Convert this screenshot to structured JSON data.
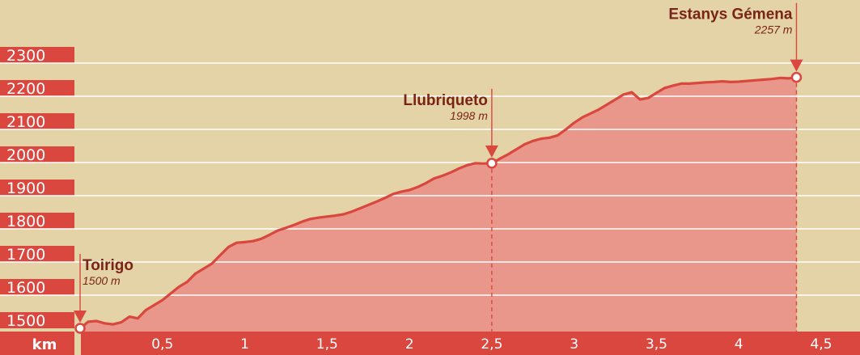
{
  "chart_data": {
    "type": "area",
    "xlabel": "km",
    "ylabel": "",
    "xlim": [
      0,
      4.5
    ],
    "ylim": [
      1480,
      2330
    ],
    "grid": true,
    "y_ticks": [
      {
        "value": 1500,
        "label": "1500"
      },
      {
        "value": 1600,
        "label": "1600"
      },
      {
        "value": 1700,
        "label": "1700"
      },
      {
        "value": 1800,
        "label": "1800"
      },
      {
        "value": 1900,
        "label": "1900"
      },
      {
        "value": 2000,
        "label": "2000"
      },
      {
        "value": 2100,
        "label": "2100"
      },
      {
        "value": 2200,
        "label": "2200"
      },
      {
        "value": 2300,
        "label": "2300"
      }
    ],
    "x_ticks": [
      {
        "value": 0.5,
        "label": "0,5"
      },
      {
        "value": 1,
        "label": "1"
      },
      {
        "value": 1.5,
        "label": "1,5"
      },
      {
        "value": 2,
        "label": "2"
      },
      {
        "value": 2.5,
        "label": "2,5"
      },
      {
        "value": 3,
        "label": "3"
      },
      {
        "value": 3.5,
        "label": "3,5"
      },
      {
        "value": 4,
        "label": "4"
      },
      {
        "value": 4.5,
        "label": "4,5"
      }
    ],
    "x": [
      0,
      0.05,
      0.1,
      0.15,
      0.2,
      0.25,
      0.3,
      0.35,
      0.4,
      0.45,
      0.5,
      0.55,
      0.6,
      0.65,
      0.7,
      0.75,
      0.8,
      0.85,
      0.9,
      0.95,
      1.0,
      1.05,
      1.1,
      1.15,
      1.2,
      1.25,
      1.3,
      1.35,
      1.4,
      1.45,
      1.5,
      1.55,
      1.6,
      1.65,
      1.7,
      1.75,
      1.8,
      1.85,
      1.9,
      1.95,
      2.0,
      2.05,
      2.1,
      2.15,
      2.2,
      2.25,
      2.3,
      2.35,
      2.4,
      2.45,
      2.5,
      2.55,
      2.6,
      2.65,
      2.7,
      2.75,
      2.8,
      2.85,
      2.9,
      2.95,
      3.0,
      3.05,
      3.1,
      3.15,
      3.2,
      3.25,
      3.3,
      3.35,
      3.4,
      3.45,
      3.5,
      3.55,
      3.6,
      3.65,
      3.7,
      3.75,
      3.8,
      3.85,
      3.9,
      3.95,
      4.0,
      4.05,
      4.1,
      4.15,
      4.2,
      4.25,
      4.3,
      4.35
    ],
    "values": [
      1500,
      1520,
      1522,
      1515,
      1512,
      1518,
      1535,
      1530,
      1555,
      1570,
      1585,
      1605,
      1625,
      1640,
      1665,
      1680,
      1695,
      1720,
      1745,
      1758,
      1760,
      1763,
      1770,
      1782,
      1795,
      1803,
      1812,
      1822,
      1830,
      1834,
      1837,
      1840,
      1844,
      1852,
      1862,
      1872,
      1882,
      1893,
      1905,
      1912,
      1917,
      1926,
      1938,
      1952,
      1960,
      1970,
      1982,
      1992,
      1998,
      1997,
      1998,
      2012,
      2025,
      2040,
      2055,
      2065,
      2072,
      2075,
      2082,
      2100,
      2120,
      2136,
      2148,
      2160,
      2175,
      2190,
      2205,
      2212,
      2190,
      2195,
      2210,
      2225,
      2232,
      2238,
      2238,
      2240,
      2242,
      2243,
      2245,
      2243,
      2244,
      2246,
      2248,
      2250,
      2252,
      2255,
      2254,
      2257
    ],
    "waypoints": [
      {
        "name": "Toirigo",
        "alt_label": "1500 m",
        "x": 0,
        "y": 1500
      },
      {
        "name": "Llubriqueto",
        "alt_label": "1998 m",
        "x": 2.5,
        "y": 1998
      },
      {
        "name": "Estanys Gémena",
        "alt_label": "2257 m",
        "x": 4.35,
        "y": 2257
      }
    ],
    "colors": {
      "background": "#e3d3a6",
      "band": "#d9473f",
      "fill": "#e9978a",
      "line": "#d9473f",
      "grid": "#ffffff",
      "label_text": "#7a2418"
    }
  }
}
